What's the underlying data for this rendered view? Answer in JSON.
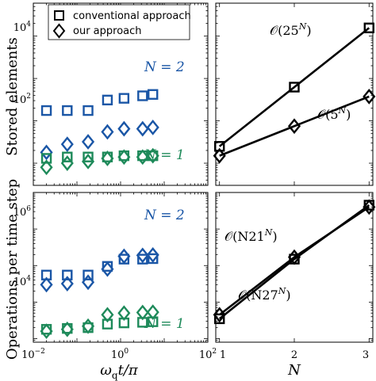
{
  "colors": {
    "n2": "#1a56a6",
    "n1": "#1e8a5a",
    "ref": "#000000"
  },
  "legend": {
    "conventional": "conventional approach",
    "ours": "our approach"
  },
  "axes": {
    "left_xlabel": "ω",
    "left_xlabel_sub": "q",
    "left_xlabel_rest": "t/π",
    "right_xlabel": "N",
    "top_ylabel": "Stored elements",
    "bottom_ylabel": "Operations per time step"
  },
  "ticks": {
    "left_x": [
      {
        "base": "10",
        "exp": "−2"
      },
      {
        "base": "10",
        "exp": "0"
      },
      {
        "base": "10",
        "exp": "2"
      }
    ],
    "right_x": [
      "1",
      "2",
      "3"
    ],
    "top_y": [
      {
        "base": "10",
        "exp": "2"
      },
      {
        "base": "10",
        "exp": "4"
      }
    ],
    "bottom_y": [
      {
        "base": "10",
        "exp": "4"
      },
      {
        "base": "10",
        "exp": "6"
      }
    ]
  },
  "labels": {
    "top_n2": "N = 2",
    "top_n1": "N = 1",
    "bottom_n2": "N = 2",
    "bottom_n1": "N = 1"
  },
  "annotations": {
    "top_conv": {
      "pre": "𝒪(25",
      "sup": "N",
      "post": ")"
    },
    "top_ours": {
      "pre": "𝒪(5",
      "sup": "N",
      "post": ")"
    },
    "bottom_ours": {
      "pre": "𝒪(N21",
      "sup": "N",
      "post": ")"
    },
    "bottom_conv": {
      "pre": "𝒪(N27",
      "sup": "N",
      "post": ")"
    }
  },
  "chart_data": [
    {
      "type": "scatter",
      "panel": "top-left",
      "x_scale": "log",
      "y_scale": "log",
      "xlim": [
        0.01,
        100
      ],
      "ylim": [
        3,
        60000
      ],
      "series": [
        {
          "name": "conventional approach",
          "marker": "square",
          "color": "n2",
          "x": [
            0.02,
            0.06,
            0.18,
            0.5,
            1.2,
            3.2,
            5.5
          ],
          "y": [
            175,
            175,
            175,
            310,
            340,
            390,
            420
          ]
        },
        {
          "name": "our approach",
          "marker": "diamond",
          "color": "n2",
          "x": [
            0.02,
            0.06,
            0.18,
            0.5,
            1.2,
            3.2,
            5.5
          ],
          "y": [
            18,
            28,
            32,
            55,
            65,
            65,
            70
          ]
        },
        {
          "name": "conventional approach",
          "marker": "square",
          "color": "n1",
          "x": [
            0.02,
            0.06,
            0.18,
            0.5,
            1.2,
            3.2,
            5.5
          ],
          "y": [
            13,
            14,
            14,
            14,
            15,
            15,
            15
          ]
        },
        {
          "name": "our approach",
          "marker": "diamond",
          "color": "n1",
          "x": [
            0.02,
            0.06,
            0.18,
            0.5,
            1.2,
            3.2,
            5.5
          ],
          "y": [
            8,
            10,
            11,
            13,
            14,
            14,
            15
          ]
        }
      ]
    },
    {
      "type": "line",
      "panel": "top-right",
      "y_scale": "log",
      "xlim": [
        0.95,
        3.05
      ],
      "ylim": [
        3,
        60000
      ],
      "series": [
        {
          "name": "conventional approach",
          "marker": "square",
          "x": [
            1,
            2,
            3
          ],
          "y": [
            25,
            625,
            15625
          ]
        },
        {
          "name": "our approach",
          "marker": "diamond",
          "x": [
            1,
            2,
            3
          ],
          "y": [
            15,
            75,
            375
          ]
        }
      ]
    },
    {
      "type": "scatter",
      "panel": "bottom-left",
      "x_scale": "log",
      "y_scale": "log",
      "xlim": [
        0.01,
        100
      ],
      "ylim": [
        800,
        10000000
      ],
      "series": [
        {
          "name": "conventional approach",
          "marker": "square",
          "color": "n2",
          "x": [
            0.02,
            0.06,
            0.18,
            0.5,
            1.2,
            3.2,
            5.5
          ],
          "y": [
            55000,
            55000,
            55000,
            95000,
            150000,
            150000,
            155000
          ]
        },
        {
          "name": "our approach",
          "marker": "diamond",
          "color": "n2",
          "x": [
            0.02,
            0.06,
            0.18,
            0.5,
            1.2,
            3.2,
            5.5
          ],
          "y": [
            30000,
            32000,
            35000,
            80000,
            180000,
            190000,
            195000
          ]
        },
        {
          "name": "conventional approach",
          "marker": "square",
          "color": "n1",
          "x": [
            0.02,
            0.06,
            0.18,
            0.5,
            1.2,
            3.2,
            5.5
          ],
          "y": [
            1800,
            1900,
            2000,
            2500,
            2700,
            2800,
            2900
          ]
        },
        {
          "name": "our approach",
          "marker": "diamond",
          "color": "n1",
          "x": [
            0.02,
            0.06,
            0.18,
            0.5,
            1.2,
            3.2,
            5.5
          ],
          "y": [
            1600,
            1800,
            2200,
            4500,
            5000,
            5200,
            5300
          ]
        }
      ]
    },
    {
      "type": "line",
      "panel": "bottom-right",
      "y_scale": "log",
      "xlim": [
        0.95,
        3.05
      ],
      "ylim": [
        800,
        10000000
      ],
      "series": [
        {
          "name": "conventional approach",
          "marker": "square",
          "x": [
            1,
            2,
            3
          ],
          "y": [
            3500,
            150000,
            4500000
          ]
        },
        {
          "name": "our approach",
          "marker": "diamond",
          "x": [
            1,
            2,
            3
          ],
          "y": [
            4500,
            170000,
            4000000
          ]
        }
      ]
    }
  ]
}
